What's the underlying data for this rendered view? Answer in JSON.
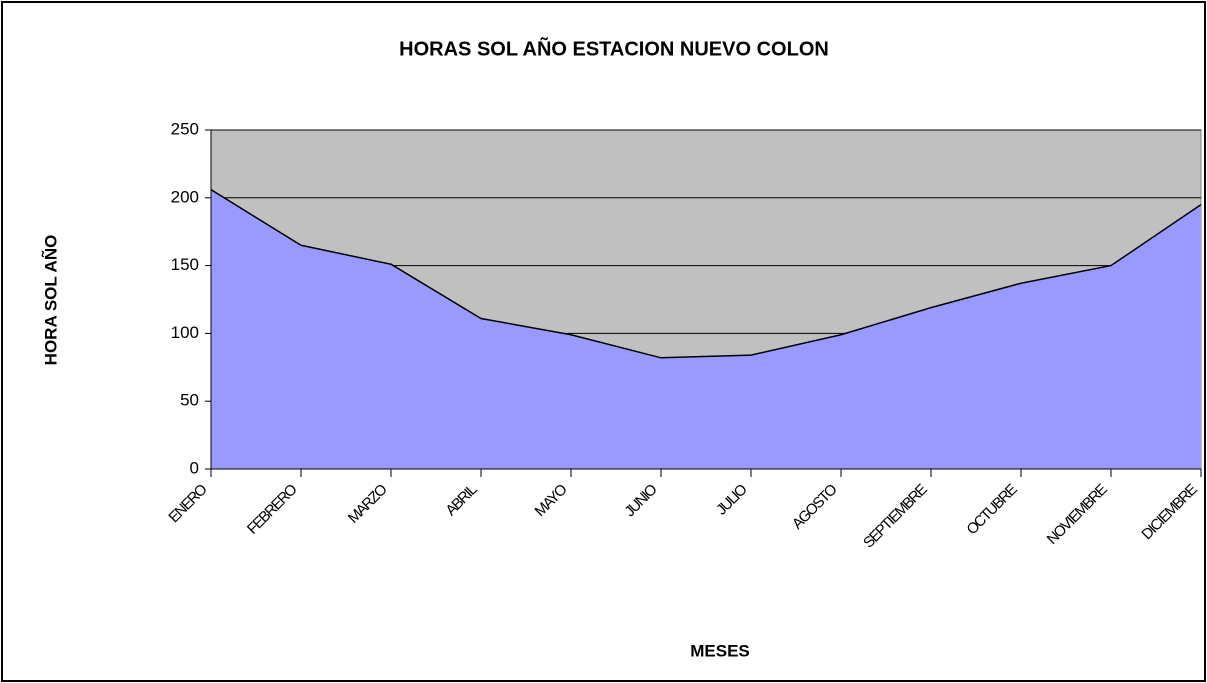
{
  "chart_data": {
    "type": "area",
    "title": "HORAS SOL AÑO ESTACION NUEVO COLON",
    "x_label": "MESES",
    "y_label": "HORA SOL AÑO",
    "categories": [
      "ENERO",
      "FEBRERO",
      "MARZO",
      "ABRIL",
      "MAYO",
      "JUNIO",
      "JULIO",
      "AGOSTO",
      "SEPTIEMBRE",
      "OCTUBRE",
      "NOVIEMBRE",
      "DICIEMBRE"
    ],
    "values": [
      206,
      165,
      151,
      111,
      99,
      82,
      84,
      99,
      119,
      137,
      150,
      195
    ],
    "color": "#9999ff",
    "plot_background": "#c0c0c0",
    "ylim": [
      0,
      250
    ],
    "yticks": [
      0,
      50,
      100,
      150,
      200,
      250
    ],
    "grid": true
  }
}
